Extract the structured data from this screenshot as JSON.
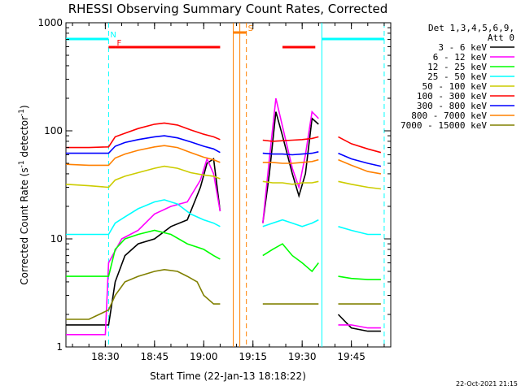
{
  "chart_data": {
    "type": "line",
    "title": "RHESSI Observing Summary Count Rates, Corrected",
    "xlabel": "Start Time (22-Jan-13 18:18:22)",
    "ylabel": "Corrected Count Rate (s^-1 detector^-1)",
    "ylabel_parts": {
      "main": "Corrected Count Rate (s",
      "sup1": "-1",
      "mid": " detector",
      "sup2": "-1",
      "end": ")"
    },
    "y_scale": "log",
    "ylim": [
      1,
      1000
    ],
    "xlim": [
      "18:18",
      "19:57"
    ],
    "x_tick_labels": [
      "18:30",
      "18:45",
      "19:00",
      "19:15",
      "19:30",
      "19:45"
    ],
    "y_tick_labels": [
      "1",
      "10",
      "100",
      "1000"
    ],
    "legend_header": [
      "Det 1,3,4,5,6,9,",
      "Att 0"
    ],
    "legend_placement": "right, outside plot",
    "series": [
      {
        "name": "3 - 6 keV",
        "color": "#000000",
        "points": [
          [
            "18:18",
            1.6
          ],
          [
            "18:25",
            1.6
          ],
          [
            "18:31",
            1.6
          ],
          [
            "18:33",
            4
          ],
          [
            "18:36",
            7
          ],
          [
            "18:40",
            9
          ],
          [
            "18:45",
            10
          ],
          [
            "18:50",
            13
          ],
          [
            "18:55",
            15
          ],
          [
            "18:59",
            30
          ],
          [
            "19:01",
            50
          ],
          [
            "19:03",
            55
          ],
          [
            "19:05",
            18
          ],
          [
            "19:08",
            null
          ],
          [
            "19:17",
            null
          ],
          [
            "19:18",
            14
          ],
          [
            "19:20",
            40
          ],
          [
            "19:22",
            150
          ],
          [
            "19:24",
            90
          ],
          [
            "19:27",
            40
          ],
          [
            "19:29",
            25
          ],
          [
            "19:31",
            40
          ],
          [
            "19:33",
            130
          ],
          [
            "19:35",
            115
          ],
          [
            "19:36",
            null
          ],
          [
            "19:40",
            null
          ],
          [
            "19:41",
            2
          ],
          [
            "19:45",
            1.5
          ],
          [
            "19:50",
            1.4
          ],
          [
            "19:54",
            1.4
          ]
        ]
      },
      {
        "name": "6 - 12 keV",
        "color": "#ff00ff",
        "points": [
          [
            "18:18",
            1.3
          ],
          [
            "18:30",
            1.3
          ],
          [
            "18:31",
            6
          ],
          [
            "18:35",
            10
          ],
          [
            "18:40",
            12
          ],
          [
            "18:45",
            17
          ],
          [
            "18:50",
            20
          ],
          [
            "18:55",
            22
          ],
          [
            "18:59",
            35
          ],
          [
            "19:01",
            55
          ],
          [
            "19:03",
            40
          ],
          [
            "19:05",
            18
          ],
          [
            "19:08",
            null
          ],
          [
            "19:17",
            null
          ],
          [
            "19:18",
            14
          ],
          [
            "19:20",
            55
          ],
          [
            "19:22",
            200
          ],
          [
            "19:24",
            110
          ],
          [
            "19:27",
            45
          ],
          [
            "19:29",
            30
          ],
          [
            "19:31",
            60
          ],
          [
            "19:33",
            150
          ],
          [
            "19:35",
            130
          ],
          [
            "19:36",
            null
          ],
          [
            "19:40",
            null
          ],
          [
            "19:41",
            1.6
          ],
          [
            "19:45",
            1.6
          ],
          [
            "19:50",
            1.5
          ],
          [
            "19:54",
            1.5
          ]
        ]
      },
      {
        "name": "12 - 25 keV",
        "color": "#00ff00",
        "points": [
          [
            "18:18",
            4.5
          ],
          [
            "18:25",
            4.5
          ],
          [
            "18:31",
            4.5
          ],
          [
            "18:33",
            8
          ],
          [
            "18:36",
            10
          ],
          [
            "18:40",
            11
          ],
          [
            "18:45",
            12
          ],
          [
            "18:50",
            11
          ],
          [
            "18:55",
            9
          ],
          [
            "19:00",
            8
          ],
          [
            "19:03",
            7
          ],
          [
            "19:05",
            6.5
          ],
          [
            "19:08",
            null
          ],
          [
            "19:17",
            null
          ],
          [
            "19:18",
            7
          ],
          [
            "19:21",
            8
          ],
          [
            "19:24",
            9
          ],
          [
            "19:27",
            7
          ],
          [
            "19:30",
            6
          ],
          [
            "19:33",
            5
          ],
          [
            "19:35",
            6
          ],
          [
            "19:36",
            null
          ],
          [
            "19:40",
            null
          ],
          [
            "19:41",
            4.5
          ],
          [
            "19:45",
            4.3
          ],
          [
            "19:50",
            4.2
          ],
          [
            "19:54",
            4.2
          ]
        ]
      },
      {
        "name": "25 - 50 keV",
        "color": "#00ffff",
        "points": [
          [
            "18:18",
            11
          ],
          [
            "18:25",
            11
          ],
          [
            "18:31",
            11
          ],
          [
            "18:33",
            14
          ],
          [
            "18:36",
            16
          ],
          [
            "18:40",
            19
          ],
          [
            "18:45",
            22
          ],
          [
            "18:48",
            23
          ],
          [
            "18:52",
            21
          ],
          [
            "18:56",
            17
          ],
          [
            "19:00",
            15
          ],
          [
            "19:03",
            14
          ],
          [
            "19:05",
            13
          ],
          [
            "19:08",
            null
          ],
          [
            "19:17",
            null
          ],
          [
            "19:18",
            13
          ],
          [
            "19:21",
            14
          ],
          [
            "19:24",
            15
          ],
          [
            "19:27",
            14
          ],
          [
            "19:30",
            13
          ],
          [
            "19:33",
            14
          ],
          [
            "19:35",
            15
          ],
          [
            "19:36",
            null
          ],
          [
            "19:40",
            null
          ],
          [
            "19:41",
            13
          ],
          [
            "19:45",
            12
          ],
          [
            "19:50",
            11
          ],
          [
            "19:54",
            11
          ]
        ]
      },
      {
        "name": "50 - 100 keV",
        "color": "#cccc00",
        "points": [
          [
            "18:18",
            32
          ],
          [
            "18:25",
            31
          ],
          [
            "18:31",
            30
          ],
          [
            "18:33",
            35
          ],
          [
            "18:36",
            38
          ],
          [
            "18:40",
            41
          ],
          [
            "18:45",
            45
          ],
          [
            "18:48",
            47
          ],
          [
            "18:52",
            45
          ],
          [
            "18:56",
            41
          ],
          [
            "19:00",
            39
          ],
          [
            "19:03",
            38
          ],
          [
            "19:05",
            36
          ],
          [
            "19:08",
            null
          ],
          [
            "19:17",
            null
          ],
          [
            "19:18",
            34
          ],
          [
            "19:21",
            33
          ],
          [
            "19:24",
            33
          ],
          [
            "19:27",
            32
          ],
          [
            "19:30",
            33
          ],
          [
            "19:33",
            33
          ],
          [
            "19:35",
            34
          ],
          [
            "19:36",
            null
          ],
          [
            "19:40",
            null
          ],
          [
            "19:41",
            34
          ],
          [
            "19:45",
            32
          ],
          [
            "19:50",
            30
          ],
          [
            "19:54",
            29
          ]
        ]
      },
      {
        "name": "100 - 300 keV",
        "color": "#ff0000",
        "points": [
          [
            "18:18",
            70
          ],
          [
            "18:25",
            70
          ],
          [
            "18:31",
            71
          ],
          [
            "18:33",
            88
          ],
          [
            "18:36",
            95
          ],
          [
            "18:40",
            105
          ],
          [
            "18:45",
            115
          ],
          [
            "18:48",
            118
          ],
          [
            "18:52",
            113
          ],
          [
            "18:56",
            102
          ],
          [
            "19:00",
            93
          ],
          [
            "19:03",
            88
          ],
          [
            "19:05",
            83
          ],
          [
            "19:08",
            null
          ],
          [
            "19:17",
            null
          ],
          [
            "19:18",
            82
          ],
          [
            "19:21",
            80
          ],
          [
            "19:24",
            81
          ],
          [
            "19:27",
            82
          ],
          [
            "19:30",
            83
          ],
          [
            "19:33",
            85
          ],
          [
            "19:35",
            88
          ],
          [
            "19:36",
            null
          ],
          [
            "19:40",
            null
          ],
          [
            "19:41",
            88
          ],
          [
            "19:45",
            76
          ],
          [
            "19:50",
            68
          ],
          [
            "19:54",
            63
          ]
        ]
      },
      {
        "name": "300 - 800 keV",
        "color": "#0000ff",
        "points": [
          [
            "18:18",
            62
          ],
          [
            "18:25",
            62
          ],
          [
            "18:31",
            62
          ],
          [
            "18:33",
            72
          ],
          [
            "18:36",
            78
          ],
          [
            "18:40",
            83
          ],
          [
            "18:45",
            88
          ],
          [
            "18:48",
            90
          ],
          [
            "18:52",
            86
          ],
          [
            "18:56",
            79
          ],
          [
            "19:00",
            72
          ],
          [
            "19:03",
            68
          ],
          [
            "19:05",
            63
          ],
          [
            "19:08",
            null
          ],
          [
            "19:17",
            null
          ],
          [
            "19:18",
            62
          ],
          [
            "19:21",
            61
          ],
          [
            "19:24",
            61
          ],
          [
            "19:27",
            60
          ],
          [
            "19:30",
            61
          ],
          [
            "19:33",
            62
          ],
          [
            "19:35",
            64
          ],
          [
            "19:36",
            null
          ],
          [
            "19:40",
            null
          ],
          [
            "19:41",
            62
          ],
          [
            "19:45",
            55
          ],
          [
            "19:50",
            50
          ],
          [
            "19:54",
            47
          ]
        ]
      },
      {
        "name": "800 - 7000 keV",
        "color": "#ff8000",
        "points": [
          [
            "18:18",
            49
          ],
          [
            "18:25",
            48
          ],
          [
            "18:31",
            48
          ],
          [
            "18:33",
            56
          ],
          [
            "18:36",
            61
          ],
          [
            "18:40",
            66
          ],
          [
            "18:45",
            71
          ],
          [
            "18:48",
            73
          ],
          [
            "18:52",
            70
          ],
          [
            "18:56",
            63
          ],
          [
            "19:00",
            57
          ],
          [
            "19:03",
            54
          ],
          [
            "19:05",
            51
          ],
          [
            "19:08",
            null
          ],
          [
            "19:17",
            null
          ],
          [
            "19:18",
            51
          ],
          [
            "19:21",
            51
          ],
          [
            "19:24",
            50
          ],
          [
            "19:27",
            50
          ],
          [
            "19:30",
            51
          ],
          [
            "19:33",
            52
          ],
          [
            "19:35",
            54
          ],
          [
            "19:36",
            null
          ],
          [
            "19:40",
            null
          ],
          [
            "19:41",
            54
          ],
          [
            "19:45",
            48
          ],
          [
            "19:50",
            42
          ],
          [
            "19:54",
            40
          ]
        ]
      },
      {
        "name": "7000 - 15000 keV",
        "color": "#808000",
        "points": [
          [
            "18:18",
            1.8
          ],
          [
            "18:25",
            1.8
          ],
          [
            "18:31",
            2.2
          ],
          [
            "18:33",
            3
          ],
          [
            "18:36",
            4
          ],
          [
            "18:40",
            4.5
          ],
          [
            "18:45",
            5
          ],
          [
            "18:48",
            5.2
          ],
          [
            "18:52",
            5
          ],
          [
            "18:55",
            4.5
          ],
          [
            "18:58",
            4
          ],
          [
            "19:00",
            3
          ],
          [
            "19:03",
            2.5
          ],
          [
            "19:05",
            2.5
          ],
          [
            "19:08",
            null
          ],
          [
            "19:17",
            null
          ],
          [
            "19:18",
            2.5
          ],
          [
            "19:21",
            2.5
          ],
          [
            "19:24",
            2.5
          ],
          [
            "19:27",
            2.5
          ],
          [
            "19:30",
            2.5
          ],
          [
            "19:33",
            2.5
          ],
          [
            "19:35",
            2.5
          ],
          [
            "19:36",
            null
          ],
          [
            "19:40",
            null
          ],
          [
            "19:41",
            2.5
          ],
          [
            "19:45",
            2.5
          ],
          [
            "19:50",
            2.5
          ],
          [
            "19:54",
            2.5
          ]
        ]
      }
    ],
    "annotations": {
      "orbit_night_bars": [
        {
          "label": "N",
          "start": "18:18",
          "end": "18:31",
          "color": "#00ffff"
        },
        {
          "label": "",
          "start": "19:36",
          "end": "19:55",
          "color": "#00ffff"
        }
      ],
      "flare_bars": [
        {
          "label": "F",
          "start": "18:31",
          "end": "18:33",
          "color": "#ff0000"
        },
        {
          "label": "",
          "start": "18:33",
          "end": "19:05",
          "color": "#ff0000"
        },
        {
          "label": "",
          "start": "19:24",
          "end": "19:34",
          "color": "#ff0000"
        }
      ],
      "saa_bars": [
        {
          "label": "S",
          "start": "19:09",
          "end": "19:13",
          "color": "#ff8000"
        }
      ],
      "vlines": [
        {
          "time": "18:31",
          "color": "#00ffff",
          "style": "dashed"
        },
        {
          "time": "19:36",
          "color": "#00ffff",
          "style": "solid"
        },
        {
          "time": "19:55",
          "color": "#00ffff",
          "style": "dashed"
        },
        {
          "time": "19:09",
          "color": "#ff8000",
          "style": "solid"
        },
        {
          "time": "19:11",
          "color": "#ff8000",
          "style": "solid"
        },
        {
          "time": "19:13",
          "color": "#ff8000",
          "style": "dashed"
        }
      ]
    },
    "grid": false
  },
  "footer": {
    "timestamp": "22-Oct-2021 21:15"
  }
}
